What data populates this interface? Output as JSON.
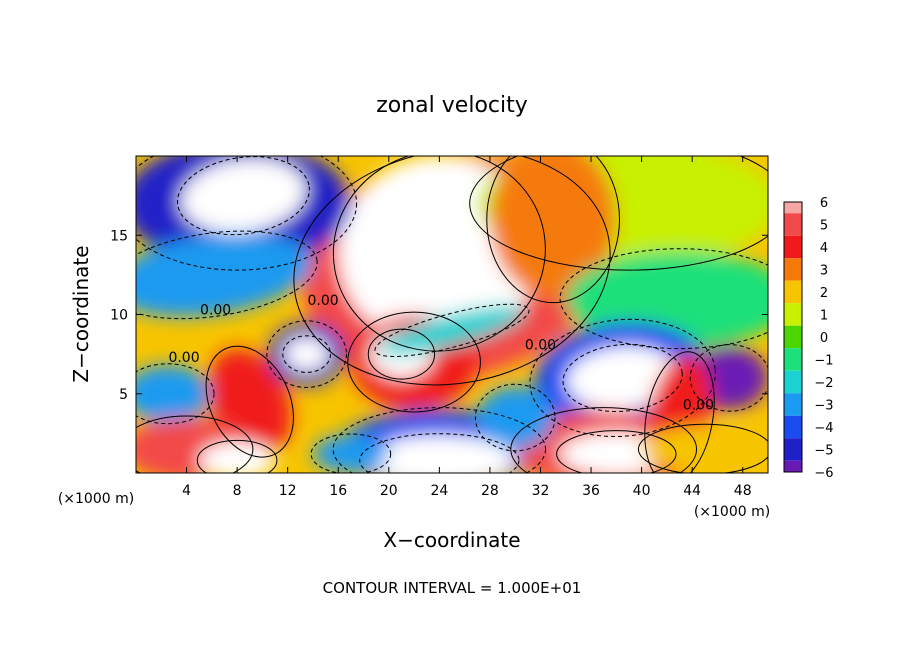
{
  "chart_data": {
    "type": "heatmap",
    "title": "zonal velocity",
    "xlabel": "X−coordinate",
    "ylabel": "Z−coordinate",
    "x_unit": "(×1000 m)",
    "y_unit": "(×1000 m)",
    "footer": "CONTOUR INTERVAL = 1.000E+01",
    "xlim": [
      0,
      50
    ],
    "ylim": [
      0,
      20
    ],
    "x_ticks": [
      4,
      8,
      12,
      16,
      20,
      24,
      28,
      32,
      36,
      40,
      44,
      48
    ],
    "x_tick_labels": [
      "4",
      "8",
      "12",
      "16",
      "20",
      "24",
      "28",
      "32",
      "36",
      "40",
      "44",
      "48"
    ],
    "y_ticks": [
      5,
      10,
      15
    ],
    "y_tick_labels": [
      "5",
      "10",
      "15"
    ],
    "colorbar": {
      "levels": [
        6,
        5,
        4,
        3,
        2,
        1,
        0,
        -1,
        -2,
        -3,
        -4,
        -5,
        -6
      ],
      "labels": [
        "6",
        "5",
        "4",
        "3",
        "2",
        "1",
        "0",
        "−1",
        "−2",
        "−3",
        "−4",
        "−5",
        "−6"
      ],
      "colors": [
        "#f7a6a6",
        "#f24a4a",
        "#f01a1a",
        "#f57a0a",
        "#f7c400",
        "#c8f000",
        "#4cd600",
        "#1ee07a",
        "#1ad2d2",
        "#1a9af0",
        "#1a4cf0",
        "#2020c8",
        "#6a1ab4"
      ]
    },
    "contour_labels": [
      {
        "text": "0.00",
        "x": 6.3,
        "z": 10.0
      },
      {
        "text": "0.00",
        "x": 14.8,
        "z": 10.6
      },
      {
        "text": "0.00",
        "x": 3.8,
        "z": 7.0
      },
      {
        "text": "0.00",
        "x": 32.0,
        "z": 7.8
      },
      {
        "text": "0.00",
        "x": 44.5,
        "z": 4.0
      }
    ],
    "regions": [
      {
        "type": "blob",
        "x": 25,
        "z": 13,
        "rx": 12,
        "rz": 7,
        "value": 5,
        "rot": -10
      },
      {
        "type": "blob",
        "x": 24,
        "z": 14,
        "rx": 8,
        "rz": 6,
        "value": 7,
        "rot": -10
      },
      {
        "type": "blob",
        "x": 8,
        "z": 17,
        "rx": 9,
        "rz": 4,
        "value": -5,
        "rot": 0
      },
      {
        "type": "blob",
        "x": 6,
        "z": 12.5,
        "rx": 8,
        "rz": 2.5,
        "value": -3,
        "rot": -8
      },
      {
        "type": "blob",
        "x": 8.5,
        "z": 17.5,
        "rx": 5,
        "rz": 2.3,
        "value": -7,
        "rot": -8
      },
      {
        "type": "blob",
        "x": 39,
        "z": 17,
        "rx": 12,
        "rz": 4,
        "value": 0.5,
        "rot": 0
      },
      {
        "type": "blob",
        "x": 33,
        "z": 16,
        "rx": 5,
        "rz": 5,
        "value": 2.5,
        "rot": 0
      },
      {
        "type": "blob",
        "x": 43,
        "z": 11,
        "rx": 9,
        "rz": 3,
        "value": -1,
        "rot": 0
      },
      {
        "type": "blob",
        "x": 38.5,
        "z": 6,
        "rx": 7,
        "rz": 3.5,
        "value": -4.5,
        "rot": -5
      },
      {
        "type": "blob",
        "x": 38.5,
        "z": 6,
        "rx": 4.5,
        "rz": 2,
        "value": -7,
        "rot": -5
      },
      {
        "type": "blob",
        "x": 47,
        "z": 6,
        "rx": 3,
        "rz": 2,
        "value": -6,
        "rot": 0
      },
      {
        "type": "blob",
        "x": 22,
        "z": 7,
        "rx": 5,
        "rz": 3,
        "value": 4,
        "rot": 0
      },
      {
        "type": "blob",
        "x": 21,
        "z": 7.5,
        "rx": 2.5,
        "rz": 1.5,
        "value": 7,
        "rot": 0
      },
      {
        "type": "blob",
        "x": 25,
        "z": 9,
        "rx": 6,
        "rz": 1,
        "value": -2,
        "rot": -15
      },
      {
        "type": "blob",
        "x": 13.5,
        "z": 7.5,
        "rx": 3,
        "rz": 2,
        "value": -5,
        "rot": 0
      },
      {
        "type": "blob",
        "x": 13.5,
        "z": 7.5,
        "rx": 1.8,
        "rz": 1.1,
        "value": -7,
        "rot": 0
      },
      {
        "type": "blob",
        "x": 2.5,
        "z": 5,
        "rx": 3.5,
        "rz": 1.8,
        "value": -3,
        "rot": 0
      },
      {
        "type": "blob",
        "x": 9,
        "z": 4.5,
        "rx": 3,
        "rz": 3.5,
        "value": 4,
        "rot": -25
      },
      {
        "type": "blob",
        "x": 4,
        "z": 1.5,
        "rx": 5,
        "rz": 2,
        "value": 4.5,
        "rot": 0
      },
      {
        "type": "blob",
        "x": 24,
        "z": 1.5,
        "rx": 8,
        "rz": 2.5,
        "value": -4,
        "rot": 0
      },
      {
        "type": "blob",
        "x": 24,
        "z": 0.8,
        "rx": 6,
        "rz": 1.6,
        "value": -7,
        "rot": 0
      },
      {
        "type": "blob",
        "x": 37,
        "z": 1.5,
        "rx": 7,
        "rz": 2.5,
        "value": 4.5,
        "rot": 0
      },
      {
        "type": "blob",
        "x": 38,
        "z": 1.2,
        "rx": 4.5,
        "rz": 1.4,
        "value": 7,
        "rot": 0
      },
      {
        "type": "blob",
        "x": 8,
        "z": 0.8,
        "rx": 3,
        "rz": 1.2,
        "value": 7,
        "rot": 0
      },
      {
        "type": "blob",
        "x": 43,
        "z": 3.5,
        "rx": 2.5,
        "rz": 4,
        "value": 4,
        "rot": 10
      },
      {
        "type": "blob",
        "x": 45,
        "z": 1.5,
        "rx": 5,
        "rz": 1.5,
        "value": 2,
        "rot": 0
      },
      {
        "type": "blob",
        "x": 30,
        "z": 3.5,
        "rx": 3,
        "rz": 2,
        "value": -3.5,
        "rot": 0
      },
      {
        "type": "blob",
        "x": 17,
        "z": 1.2,
        "rx": 3,
        "rz": 1.2,
        "value": -3,
        "rot": 0
      }
    ],
    "background_value": 1.5
  }
}
